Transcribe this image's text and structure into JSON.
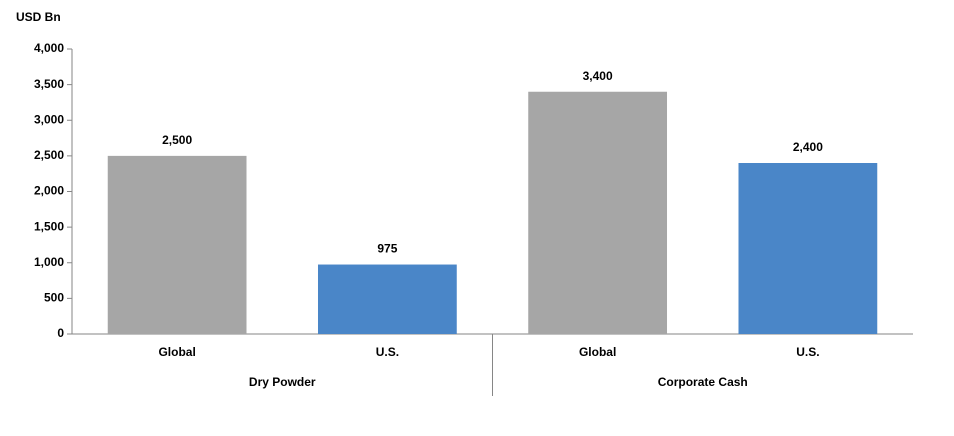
{
  "chart_data": {
    "type": "bar",
    "y_label": "USD Bn",
    "groups": [
      {
        "label": "Dry Powder",
        "categories": [
          "Global",
          "U.S."
        ],
        "values": [
          2500,
          975
        ],
        "value_labels": [
          "2,500",
          "975"
        ],
        "colors": [
          "#a6a6a6",
          "#4a86c8"
        ]
      },
      {
        "label": "Corporate Cash",
        "categories": [
          "Global",
          "U.S."
        ],
        "values": [
          3400,
          2400
        ],
        "value_labels": [
          "3,400",
          "2,400"
        ],
        "colors": [
          "#a6a6a6",
          "#4a86c8"
        ]
      }
    ],
    "ylim": [
      0,
      4000
    ],
    "yticks": [
      0,
      500,
      {
        "value": 1000,
        "label": "1,000"
      },
      {
        "value": 1500,
        "label": "1,500"
      },
      {
        "value": 2000,
        "label": "2,000"
      },
      {
        "value": 2500,
        "label": "2,500"
      },
      {
        "value": 3000,
        "label": "3,000"
      },
      {
        "value": 3500,
        "label": "3,500"
      },
      {
        "value": 4000,
        "label": "4,000"
      }
    ],
    "grid": false
  }
}
